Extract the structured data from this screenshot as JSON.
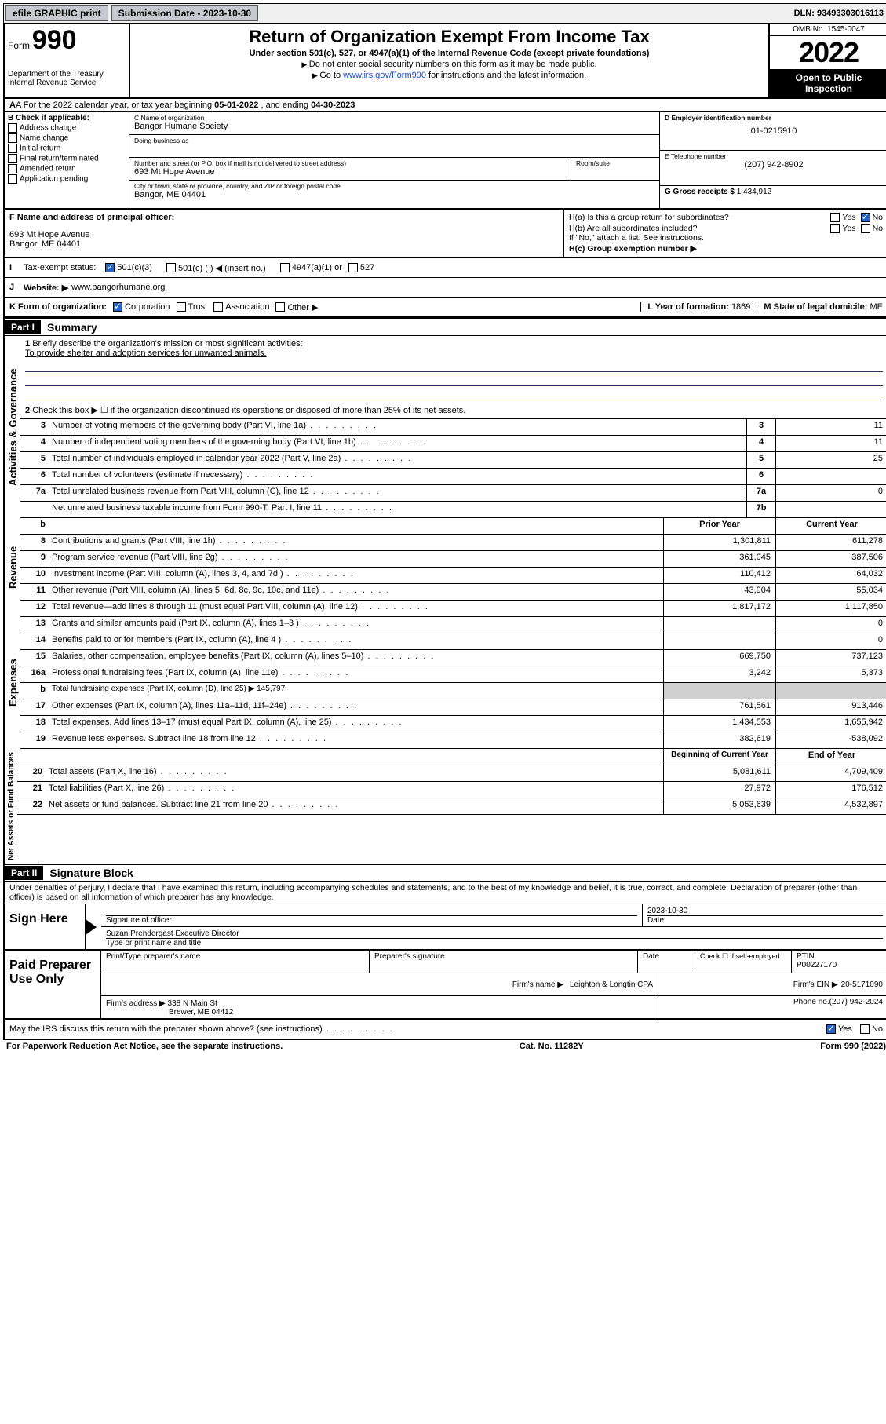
{
  "topbar": {
    "efile": "efile GRAPHIC print",
    "submission_label": "Submission Date - 2023-10-30",
    "dln": "DLN: 93493303016113"
  },
  "header": {
    "form_label": "Form",
    "form_number": "990",
    "dept": "Department of the Treasury",
    "irs": "Internal Revenue Service",
    "title": "Return of Organization Exempt From Income Tax",
    "subtitle": "Under section 501(c), 527, or 4947(a)(1) of the Internal Revenue Code (except private foundations)",
    "note1": "Do not enter social security numbers on this form as it may be made public.",
    "note2_pre": "Go to ",
    "note2_link": "www.irs.gov/Form990",
    "note2_post": " for instructions and the latest information.",
    "omb": "OMB No. 1545-0047",
    "year": "2022",
    "inspection": "Open to Public Inspection"
  },
  "line_a": {
    "prefix": "A For the 2022 calendar year, or tax year beginning ",
    "begin": "05-01-2022",
    "mid": " , and ending ",
    "end": "04-30-2023"
  },
  "box_b": {
    "header": "B Check if applicable:",
    "items": [
      "Address change",
      "Name change",
      "Initial return",
      "Final return/terminated",
      "Amended return",
      "Application pending"
    ]
  },
  "box_c": {
    "name_label": "C Name of organization",
    "name": "Bangor Humane Society",
    "dba_label": "Doing business as",
    "dba": "",
    "street_label": "Number and street (or P.O. box if mail is not delivered to street address)",
    "room_label": "Room/suite",
    "street": "693 Mt Hope Avenue",
    "city_label": "City or town, state or province, country, and ZIP or foreign postal code",
    "city": "Bangor, ME  04401"
  },
  "box_d": {
    "label": "D Employer identification number",
    "value": "01-0215910"
  },
  "box_e": {
    "label": "E Telephone number",
    "value": "(207) 942-8902"
  },
  "box_g": {
    "label": "G Gross receipts $ ",
    "value": "1,434,912"
  },
  "box_f": {
    "label": "F Name and address of principal officer:",
    "addr1": "693 Mt Hope Avenue",
    "addr2": "Bangor, ME  04401"
  },
  "box_h": {
    "a": "H(a)  Is this a group return for subordinates?",
    "b": "H(b)  Are all subordinates included?",
    "b_note": "If \"No,\" attach a list. See instructions.",
    "c": "H(c)  Group exemption number ▶",
    "yes": "Yes",
    "no": "No"
  },
  "line_i": {
    "label": "Tax-exempt status:",
    "opt1": "501(c)(3)",
    "opt2": "501(c) (  ) ◀ (insert no.)",
    "opt3": "4947(a)(1) or",
    "opt4": "527"
  },
  "line_j": {
    "label": "Website: ▶",
    "value": "www.bangorhumane.org"
  },
  "line_k": {
    "label": "K Form of organization:",
    "opts": [
      "Corporation",
      "Trust",
      "Association",
      "Other ▶"
    ]
  },
  "line_l": {
    "label": "L Year of formation: ",
    "value": "1869"
  },
  "line_m": {
    "label": "M State of legal domicile: ",
    "value": "ME"
  },
  "part1": {
    "header": "Part I",
    "title": "Summary"
  },
  "summary": {
    "q1_label": "Briefly describe the organization's mission or most significant activities:",
    "q1_text": "To provide shelter and adoption services for unwanted animals.",
    "q2": "Check this box ▶ ☐  if the organization discontinued its operations or disposed of more than 25% of its net assets.",
    "rows_single": [
      {
        "n": "3",
        "label": "Number of voting members of the governing body (Part VI, line 1a)",
        "box": "3",
        "val": "11"
      },
      {
        "n": "4",
        "label": "Number of independent voting members of the governing body (Part VI, line 1b)",
        "box": "4",
        "val": "11"
      },
      {
        "n": "5",
        "label": "Total number of individuals employed in calendar year 2022 (Part V, line 2a)",
        "box": "5",
        "val": "25"
      },
      {
        "n": "6",
        "label": "Total number of volunteers (estimate if necessary)",
        "box": "6",
        "val": ""
      },
      {
        "n": "7a",
        "label": "Total unrelated business revenue from Part VIII, column (C), line 12",
        "box": "7a",
        "val": "0"
      },
      {
        "n": "",
        "label": "Net unrelated business taxable income from Form 990-T, Part I, line 11",
        "box": "7b",
        "val": ""
      }
    ],
    "col_headers": {
      "n": "b",
      "prior": "Prior Year",
      "current": "Current Year"
    },
    "rows_two": [
      {
        "n": "8",
        "label": "Contributions and grants (Part VIII, line 1h)",
        "p": "1,301,811",
        "c": "611,278"
      },
      {
        "n": "9",
        "label": "Program service revenue (Part VIII, line 2g)",
        "p": "361,045",
        "c": "387,506"
      },
      {
        "n": "10",
        "label": "Investment income (Part VIII, column (A), lines 3, 4, and 7d )",
        "p": "110,412",
        "c": "64,032"
      },
      {
        "n": "11",
        "label": "Other revenue (Part VIII, column (A), lines 5, 6d, 8c, 9c, 10c, and 11e)",
        "p": "43,904",
        "c": "55,034"
      },
      {
        "n": "12",
        "label": "Total revenue—add lines 8 through 11 (must equal Part VIII, column (A), line 12)",
        "p": "1,817,172",
        "c": "1,117,850"
      },
      {
        "n": "13",
        "label": "Grants and similar amounts paid (Part IX, column (A), lines 1–3 )",
        "p": "",
        "c": "0"
      },
      {
        "n": "14",
        "label": "Benefits paid to or for members (Part IX, column (A), line 4 )",
        "p": "",
        "c": "0"
      },
      {
        "n": "15",
        "label": "Salaries, other compensation, employee benefits (Part IX, column (A), lines 5–10)",
        "p": "669,750",
        "c": "737,123"
      },
      {
        "n": "16a",
        "label": "Professional fundraising fees (Part IX, column (A), line 11e)",
        "p": "3,242",
        "c": "5,373"
      }
    ],
    "row_16b": {
      "n": "b",
      "label": "Total fundraising expenses (Part IX, column (D), line 25) ▶",
      "val": "145,797"
    },
    "rows_two_b": [
      {
        "n": "17",
        "label": "Other expenses (Part IX, column (A), lines 11a–11d, 11f–24e)",
        "p": "761,561",
        "c": "913,446"
      },
      {
        "n": "18",
        "label": "Total expenses. Add lines 13–17 (must equal Part IX, column (A), line 25)",
        "p": "1,434,553",
        "c": "1,655,942"
      },
      {
        "n": "19",
        "label": "Revenue less expenses. Subtract line 18 from line 12",
        "p": "382,619",
        "c": "-538,092"
      }
    ],
    "col_headers2": {
      "prior": "Beginning of Current Year",
      "current": "End of Year"
    },
    "rows_two_c": [
      {
        "n": "20",
        "label": "Total assets (Part X, line 16)",
        "p": "5,081,611",
        "c": "4,709,409"
      },
      {
        "n": "21",
        "label": "Total liabilities (Part X, line 26)",
        "p": "27,972",
        "c": "176,512"
      },
      {
        "n": "22",
        "label": "Net assets or fund balances. Subtract line 21 from line 20",
        "p": "5,053,639",
        "c": "4,532,897"
      }
    ],
    "vert_labels": {
      "gov": "Activities & Governance",
      "rev": "Revenue",
      "exp": "Expenses",
      "net": "Net Assets or Fund Balances"
    }
  },
  "part2": {
    "header": "Part II",
    "title": "Signature Block"
  },
  "penalties": "Under penalties of perjury, I declare that I have examined this return, including accompanying schedules and statements, and to the best of my knowledge and belief, it is true, correct, and complete. Declaration of preparer (other than officer) is based on all information of which preparer has any knowledge.",
  "sign": {
    "here": "Sign Here",
    "sig_label": "Signature of officer",
    "date_label": "Date",
    "date": "2023-10-30",
    "name": "Suzan Prendergast Executive Director",
    "name_label": "Type or print name and title"
  },
  "preparer": {
    "title": "Paid Preparer Use Only",
    "name_label": "Print/Type preparer's name",
    "sig_label": "Preparer's signature",
    "date_label": "Date",
    "check_label": "Check ☐ if self-employed",
    "ptin_label": "PTIN",
    "ptin": "P00227170",
    "firm_name_label": "Firm's name   ▶",
    "firm_name": "Leighton & Longtin CPA",
    "firm_ein_label": "Firm's EIN ▶",
    "firm_ein": "20-5171090",
    "firm_addr_label": "Firm's address ▶",
    "firm_addr1": "338 N Main St",
    "firm_addr2": "Brewer, ME  04412",
    "phone_label": "Phone no. ",
    "phone": "(207) 942-2024"
  },
  "discuss": {
    "label": "May the IRS discuss this return with the preparer shown above? (see instructions)",
    "yes": "Yes",
    "no": "No"
  },
  "footer": {
    "left": "For Paperwork Reduction Act Notice, see the separate instructions.",
    "mid": "Cat. No. 11282Y",
    "right": "Form 990 (2022)"
  }
}
